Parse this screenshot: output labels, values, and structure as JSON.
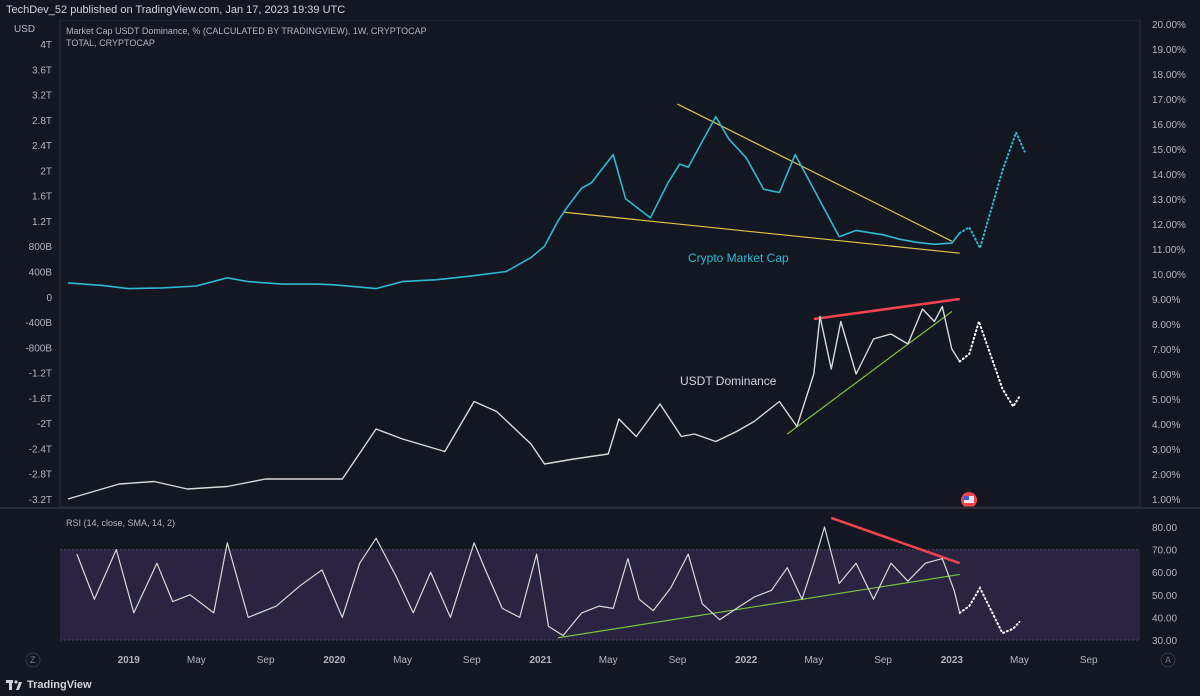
{
  "header": {
    "publisher_line": "TechDev_52 published on TradingView.com, Jan 17, 2023 19:39 UTC"
  },
  "footer": {
    "brand": "TradingView"
  },
  "buttons": {
    "zoom": "Z",
    "auto": "A"
  },
  "colors": {
    "background": "#131722",
    "market_cap": "#2fb9cf",
    "usdt_dominance": "#d9d9d9",
    "rsi": "#d9d9d9",
    "rsi_band": "#2a2440",
    "resistance": "#f2434f",
    "support": "#7ec242",
    "wedge": "#e2c64a",
    "projection": "#ffffff"
  },
  "chart_data": [
    {
      "type": "line",
      "panel": "main",
      "legend": [
        "Market Cap USDT Dominance, % (CALCULATED BY TRADINGVIEW), 1W, CRYPTOCAP",
        "TOTAL, CRYPTOCAP"
      ],
      "left_axis": {
        "unit": "USD",
        "ticks": [
          "4T",
          "3.6T",
          "3.2T",
          "2.8T",
          "2.4T",
          "2T",
          "1.6T",
          "1.2T",
          "800B",
          "400B",
          "0",
          "-400B",
          "-800B",
          "-1.2T",
          "-1.6T",
          "-2T",
          "-2.4T",
          "-2.8T",
          "-3.2T"
        ]
      },
      "right_axis": {
        "ticks": [
          "20.00%",
          "19.00%",
          "18.00%",
          "17.00%",
          "16.00%",
          "15.00%",
          "14.00%",
          "13.00%",
          "12.00%",
          "11.00%",
          "10.00%",
          "9.00%",
          "8.00%",
          "7.00%",
          "6.00%",
          "5.00%",
          "4.00%",
          "3.00%",
          "2.00%",
          "1.00%"
        ]
      },
      "annotations": [
        "Crypto Market Cap",
        "USDT Dominance"
      ],
      "series": [
        {
          "name": "TOTAL, CRYPTOCAP",
          "axis": "left",
          "x": [
            "2018-09-15",
            "2018-11-15",
            "2019-01-01",
            "2019-03-01",
            "2019-05-01",
            "2019-06-25",
            "2019-08-01",
            "2019-10-01",
            "2019-12-01",
            "2020-01-01",
            "2020-03-15",
            "2020-05-01",
            "2020-07-01",
            "2020-09-01",
            "2020-11-01",
            "2020-12-15",
            "2021-01-08",
            "2021-02-01",
            "2021-02-20",
            "2021-03-15",
            "2021-04-01",
            "2021-05-10",
            "2021-06-01",
            "2021-07-15",
            "2021-08-15",
            "2021-09-05",
            "2021-09-20",
            "2021-11-08",
            "2021-12-01",
            "2022-01-01",
            "2022-02-01",
            "2022-03-01",
            "2022-03-29",
            "2022-05-01",
            "2022-06-15",
            "2022-07-15",
            "2022-09-01",
            "2022-10-01",
            "2022-11-01",
            "2022-12-01",
            "2023-01-01",
            "2023-01-15"
          ],
          "values": [
            220,
            180,
            130,
            140,
            170,
            300,
            240,
            200,
            200,
            190,
            130,
            240,
            270,
            330,
            400,
            620,
            800,
            1200,
            1450,
            1720,
            1800,
            2250,
            1550,
            1250,
            1800,
            2100,
            2050,
            2850,
            2500,
            2200,
            1700,
            1650,
            2250,
            1700,
            950,
            1050,
            980,
            910,
            860,
            830,
            850,
            1010
          ]
        },
        {
          "name": "Market Cap USDT Dominance, %",
          "axis": "right",
          "x": [
            "2018-09-15",
            "2018-12-15",
            "2019-02-15",
            "2019-04-15",
            "2019-06-25",
            "2019-09-01",
            "2019-11-15",
            "2020-01-15",
            "2020-03-15",
            "2020-05-01",
            "2020-07-15",
            "2020-09-05",
            "2020-10-15",
            "2020-12-15",
            "2021-01-08",
            "2021-03-01",
            "2021-05-01",
            "2021-05-20",
            "2021-06-20",
            "2021-08-01",
            "2021-09-08",
            "2021-10-01",
            "2021-11-08",
            "2021-12-15",
            "2022-01-15",
            "2022-03-01",
            "2022-04-01",
            "2022-05-01",
            "2022-05-12",
            "2022-06-01",
            "2022-06-18",
            "2022-07-15",
            "2022-08-15",
            "2022-09-15",
            "2022-10-15",
            "2022-11-10",
            "2022-12-01",
            "2022-12-15",
            "2023-01-01",
            "2023-01-15"
          ],
          "values": [
            1.0,
            1.6,
            1.7,
            1.4,
            1.5,
            1.8,
            1.8,
            1.8,
            3.8,
            3.4,
            2.9,
            4.9,
            4.5,
            3.2,
            2.4,
            2.6,
            2.8,
            4.2,
            3.5,
            4.8,
            3.5,
            3.6,
            3.3,
            3.7,
            4.1,
            4.9,
            3.9,
            6.0,
            8.3,
            6.2,
            8.1,
            6.0,
            7.4,
            7.6,
            7.2,
            8.6,
            8.1,
            8.7,
            7.0,
            6.5
          ]
        }
      ],
      "trendlines": [
        {
          "name": "market-cap-upper",
          "color": "wedge",
          "points": [
            [
              "2021-09-01",
              3050
            ],
            [
              "2023-01-01",
              880
            ]
          ]
        },
        {
          "name": "market-cap-lower",
          "color": "wedge",
          "points": [
            [
              "2021-02-10",
              1340
            ],
            [
              "2023-01-15",
              690
            ]
          ]
        },
        {
          "name": "usdt-resistance",
          "color": "resistance",
          "points": [
            [
              "2022-05-01",
              8.2
            ],
            [
              "2023-01-15",
              9.0
            ]
          ]
        },
        {
          "name": "usdt-support",
          "color": "support",
          "points": [
            [
              "2022-03-15",
              3.6
            ],
            [
              "2023-01-01",
              8.5
            ]
          ]
        }
      ],
      "projections": [
        {
          "name": "market-cap-projection",
          "axis": "left",
          "points": [
            [
              "2023-01-15",
              1010
            ],
            [
              "2023-02-01",
              1100
            ],
            [
              "2023-02-20",
              770
            ],
            [
              "2023-04-01",
              2000
            ],
            [
              "2023-04-25",
              2600
            ],
            [
              "2023-05-10",
              2300
            ]
          ]
        },
        {
          "name": "usdt-projection",
          "axis": "right",
          "points": [
            [
              "2023-01-15",
              6.5
            ],
            [
              "2023-02-01",
              6.8
            ],
            [
              "2023-02-18",
              8.1
            ],
            [
              "2023-04-01",
              5.4
            ],
            [
              "2023-04-20",
              4.7
            ],
            [
              "2023-05-01",
              5.1
            ]
          ]
        }
      ]
    },
    {
      "type": "line",
      "panel": "rsi",
      "legend": "RSI (14, close, SMA, 14, 2)",
      "ticks": [
        "80.00",
        "70.00",
        "60.00",
        "50.00",
        "40.00",
        "30.00"
      ],
      "band": [
        30,
        70
      ],
      "ylim": [
        24,
        86
      ],
      "series": [
        {
          "name": "RSI",
          "x": [
            "2018-10-01",
            "2018-11-01",
            "2018-12-10",
            "2019-01-10",
            "2019-02-20",
            "2019-03-20",
            "2019-04-20",
            "2019-06-01",
            "2019-06-25",
            "2019-08-01",
            "2019-09-20",
            "2019-11-01",
            "2019-12-10",
            "2020-01-15",
            "2020-02-15",
            "2020-03-15",
            "2020-04-20",
            "2020-05-20",
            "2020-06-20",
            "2020-07-25",
            "2020-09-05",
            "2020-09-25",
            "2020-10-25",
            "2020-11-25",
            "2020-12-25",
            "2021-01-15",
            "2021-02-10",
            "2021-03-15",
            "2021-04-15",
            "2021-05-10",
            "2021-06-05",
            "2021-06-25",
            "2021-07-20",
            "2021-08-20",
            "2021-09-20",
            "2021-10-15",
            "2021-11-15",
            "2021-12-15",
            "2022-01-15",
            "2022-02-15",
            "2022-03-15",
            "2022-04-10",
            "2022-05-01",
            "2022-05-20",
            "2022-06-15",
            "2022-07-15",
            "2022-08-15",
            "2022-09-15",
            "2022-10-15",
            "2022-11-15",
            "2022-12-15",
            "2023-01-05",
            "2023-01-15"
          ],
          "values": [
            68,
            48,
            70,
            42,
            64,
            47,
            50,
            42,
            73,
            40,
            45,
            54,
            61,
            40,
            64,
            75,
            58,
            42,
            60,
            40,
            73,
            61,
            44,
            40,
            68,
            36,
            32,
            42,
            45,
            44,
            66,
            48,
            43,
            53,
            68,
            46,
            39,
            44,
            49,
            52,
            62,
            48,
            64,
            80,
            55,
            64,
            48,
            64,
            56,
            64,
            66,
            52,
            42
          ]
        }
      ],
      "trendlines": [
        {
          "name": "rsi-resistance",
          "color": "resistance",
          "points": [
            [
              "2022-06-01",
              84
            ],
            [
              "2023-01-15",
              64
            ]
          ]
        },
        {
          "name": "rsi-support",
          "color": "support",
          "points": [
            [
              "2021-02-01",
              31
            ],
            [
              "2023-01-15",
              59
            ]
          ]
        }
      ],
      "projections": [
        {
          "name": "rsi-projection",
          "points": [
            [
              "2023-01-15",
              42
            ],
            [
              "2023-02-01",
              45
            ],
            [
              "2023-02-20",
              53
            ],
            [
              "2023-04-01",
              33
            ],
            [
              "2023-04-20",
              35
            ],
            [
              "2023-05-01",
              38
            ]
          ]
        }
      ]
    }
  ],
  "time_axis": {
    "labels": [
      {
        "text": "2019",
        "date": "2019-01-01",
        "bold": true
      },
      {
        "text": "May",
        "date": "2019-05-01",
        "bold": false
      },
      {
        "text": "Sep",
        "date": "2019-09-01",
        "bold": false
      },
      {
        "text": "2020",
        "date": "2020-01-01",
        "bold": true
      },
      {
        "text": "May",
        "date": "2020-05-01",
        "bold": false
      },
      {
        "text": "Sep",
        "date": "2020-09-01",
        "bold": false
      },
      {
        "text": "2021",
        "date": "2021-01-01",
        "bold": true
      },
      {
        "text": "May",
        "date": "2021-05-01",
        "bold": false
      },
      {
        "text": "Sep",
        "date": "2021-09-01",
        "bold": false
      },
      {
        "text": "2022",
        "date": "2022-01-01",
        "bold": true
      },
      {
        "text": "May",
        "date": "2022-05-01",
        "bold": false
      },
      {
        "text": "Sep",
        "date": "2022-09-01",
        "bold": false
      },
      {
        "text": "2023",
        "date": "2023-01-01",
        "bold": true
      },
      {
        "text": "May",
        "date": "2023-05-01",
        "bold": false
      },
      {
        "text": "Sep",
        "date": "2023-09-01",
        "bold": false
      }
    ]
  }
}
